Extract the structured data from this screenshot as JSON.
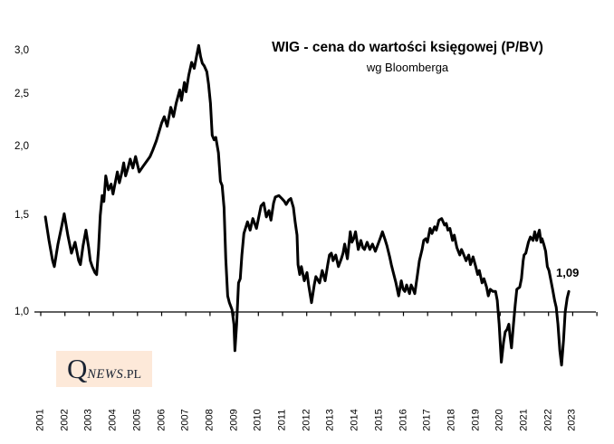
{
  "header": {
    "title": "WIG - cena do wartości księgowej (P/BV)",
    "subtitle": "wg Bloomberga"
  },
  "annotation": {
    "last_value_label": "1,09"
  },
  "logo": {
    "q": "Q",
    "news": "NEWS",
    "pl": ".PL",
    "background": "#fde9d9",
    "text_color": "#1b2433"
  },
  "colors": {
    "line": "#000000",
    "axis": "#000000",
    "background": "#ffffff"
  },
  "chart_data": {
    "type": "line",
    "title": "WIG - cena do wartości księgowej (P/BV)",
    "subtitle": "wg Bloomberga",
    "xlabel": "",
    "ylabel": "",
    "x_axis": {
      "tick_labels": [
        "2001",
        "2002",
        "2003",
        "2004",
        "2005",
        "2006",
        "2007",
        "2008",
        "2009",
        "2010",
        "2011",
        "2012",
        "2013",
        "2014",
        "2015",
        "2016",
        "2017",
        "2018",
        "2019",
        "2020",
        "2021",
        "2022",
        "2023"
      ],
      "range": [
        2001,
        2024
      ]
    },
    "y_axis": {
      "tick_labels": [
        "1,0",
        "1,5",
        "2,0",
        "2,5",
        "3,0"
      ],
      "tick_values": [
        1.0,
        1.5,
        2.0,
        2.5,
        3.0
      ],
      "scale": "log",
      "range": [
        0.75,
        3.2
      ],
      "baseline": 1.0,
      "grid": false
    },
    "legend": "none",
    "annotations": [
      {
        "text": "1,09",
        "x": 2022.84,
        "y": 1.09
      }
    ],
    "series": [
      {
        "name": "WIG P/BV",
        "color": "#000000",
        "points": [
          [
            2001.19,
            1.49
          ],
          [
            2001.34,
            1.35
          ],
          [
            2001.49,
            1.24
          ],
          [
            2001.56,
            1.21
          ],
          [
            2001.71,
            1.33
          ],
          [
            2001.86,
            1.43
          ],
          [
            2001.97,
            1.51
          ],
          [
            2002.12,
            1.38
          ],
          [
            2002.27,
            1.28
          ],
          [
            2002.42,
            1.34
          ],
          [
            2002.57,
            1.24
          ],
          [
            2002.64,
            1.22
          ],
          [
            2002.75,
            1.32
          ],
          [
            2002.87,
            1.41
          ],
          [
            2002.98,
            1.31
          ],
          [
            2003.05,
            1.24
          ],
          [
            2003.13,
            1.21
          ],
          [
            2003.24,
            1.18
          ],
          [
            2003.31,
            1.17
          ],
          [
            2003.39,
            1.3
          ],
          [
            2003.46,
            1.5
          ],
          [
            2003.54,
            1.63
          ],
          [
            2003.61,
            1.59
          ],
          [
            2003.69,
            1.77
          ],
          [
            2003.8,
            1.67
          ],
          [
            2003.91,
            1.71
          ],
          [
            2003.99,
            1.64
          ],
          [
            2004.1,
            1.74
          ],
          [
            2004.17,
            1.8
          ],
          [
            2004.25,
            1.72
          ],
          [
            2004.36,
            1.8
          ],
          [
            2004.43,
            1.87
          ],
          [
            2004.51,
            1.77
          ],
          [
            2004.62,
            1.84
          ],
          [
            2004.7,
            1.9
          ],
          [
            2004.81,
            1.83
          ],
          [
            2004.92,
            1.92
          ],
          [
            2005.07,
            1.8
          ],
          [
            2005.22,
            1.84
          ],
          [
            2005.37,
            1.88
          ],
          [
            2005.52,
            1.92
          ],
          [
            2005.63,
            1.97
          ],
          [
            2005.78,
            2.05
          ],
          [
            2005.89,
            2.13
          ],
          [
            2006.0,
            2.21
          ],
          [
            2006.11,
            2.27
          ],
          [
            2006.23,
            2.18
          ],
          [
            2006.38,
            2.36
          ],
          [
            2006.49,
            2.27
          ],
          [
            2006.6,
            2.4
          ],
          [
            2006.75,
            2.54
          ],
          [
            2006.82,
            2.43
          ],
          [
            2006.94,
            2.62
          ],
          [
            2007.01,
            2.52
          ],
          [
            2007.12,
            2.7
          ],
          [
            2007.24,
            2.85
          ],
          [
            2007.35,
            2.78
          ],
          [
            2007.46,
            2.95
          ],
          [
            2007.53,
            3.06
          ],
          [
            2007.61,
            2.92
          ],
          [
            2007.68,
            2.84
          ],
          [
            2007.76,
            2.81
          ],
          [
            2007.87,
            2.74
          ],
          [
            2007.94,
            2.6
          ],
          [
            2008.02,
            2.4
          ],
          [
            2008.09,
            2.1
          ],
          [
            2008.17,
            2.06
          ],
          [
            2008.24,
            2.08
          ],
          [
            2008.35,
            1.95
          ],
          [
            2008.43,
            1.73
          ],
          [
            2008.5,
            1.7
          ],
          [
            2008.58,
            1.55
          ],
          [
            2008.65,
            1.25
          ],
          [
            2008.73,
            1.07
          ],
          [
            2008.8,
            1.04
          ],
          [
            2008.91,
            1.01
          ],
          [
            2008.99,
            0.95
          ],
          [
            2009.03,
            0.85
          ],
          [
            2009.1,
            0.95
          ],
          [
            2009.18,
            1.13
          ],
          [
            2009.25,
            1.15
          ],
          [
            2009.32,
            1.27
          ],
          [
            2009.4,
            1.39
          ],
          [
            2009.55,
            1.46
          ],
          [
            2009.66,
            1.41
          ],
          [
            2009.77,
            1.48
          ],
          [
            2009.92,
            1.42
          ],
          [
            2010.03,
            1.5
          ],
          [
            2010.11,
            1.56
          ],
          [
            2010.22,
            1.58
          ],
          [
            2010.33,
            1.49
          ],
          [
            2010.44,
            1.53
          ],
          [
            2010.52,
            1.47
          ],
          [
            2010.63,
            1.58
          ],
          [
            2010.7,
            1.62
          ],
          [
            2010.85,
            1.63
          ],
          [
            2010.97,
            1.61
          ],
          [
            2011.08,
            1.59
          ],
          [
            2011.15,
            1.57
          ],
          [
            2011.26,
            1.6
          ],
          [
            2011.34,
            1.61
          ],
          [
            2011.45,
            1.55
          ],
          [
            2011.52,
            1.46
          ],
          [
            2011.6,
            1.38
          ],
          [
            2011.64,
            1.22
          ],
          [
            2011.71,
            1.17
          ],
          [
            2011.78,
            1.21
          ],
          [
            2011.9,
            1.14
          ],
          [
            2012.01,
            1.18
          ],
          [
            2012.08,
            1.12
          ],
          [
            2012.2,
            1.04
          ],
          [
            2012.31,
            1.12
          ],
          [
            2012.38,
            1.16
          ],
          [
            2012.53,
            1.13
          ],
          [
            2012.64,
            1.19
          ],
          [
            2012.76,
            1.14
          ],
          [
            2012.87,
            1.22
          ],
          [
            2012.94,
            1.27
          ],
          [
            2013.02,
            1.28
          ],
          [
            2013.09,
            1.24
          ],
          [
            2013.2,
            1.27
          ],
          [
            2013.31,
            1.21
          ],
          [
            2013.43,
            1.25
          ],
          [
            2013.5,
            1.28
          ],
          [
            2013.57,
            1.33
          ],
          [
            2013.68,
            1.25
          ],
          [
            2013.8,
            1.4
          ],
          [
            2013.87,
            1.34
          ],
          [
            2013.94,
            1.36
          ],
          [
            2014.02,
            1.4
          ],
          [
            2014.13,
            1.3
          ],
          [
            2014.24,
            1.35
          ],
          [
            2014.32,
            1.31
          ],
          [
            2014.39,
            1.3
          ],
          [
            2014.5,
            1.34
          ],
          [
            2014.61,
            1.3
          ],
          [
            2014.72,
            1.33
          ],
          [
            2014.84,
            1.29
          ],
          [
            2014.95,
            1.33
          ],
          [
            2015.06,
            1.37
          ],
          [
            2015.13,
            1.4
          ],
          [
            2015.25,
            1.35
          ],
          [
            2015.32,
            1.32
          ],
          [
            2015.43,
            1.26
          ],
          [
            2015.5,
            1.22
          ],
          [
            2015.58,
            1.18
          ],
          [
            2015.69,
            1.13
          ],
          [
            2015.8,
            1.07
          ],
          [
            2015.91,
            1.14
          ],
          [
            2015.99,
            1.1
          ],
          [
            2016.06,
            1.09
          ],
          [
            2016.13,
            1.12
          ],
          [
            2016.25,
            1.08
          ],
          [
            2016.32,
            1.12
          ],
          [
            2016.4,
            1.1
          ],
          [
            2016.47,
            1.08
          ],
          [
            2016.58,
            1.17
          ],
          [
            2016.66,
            1.24
          ],
          [
            2016.77,
            1.3
          ],
          [
            2016.84,
            1.35
          ],
          [
            2016.92,
            1.36
          ],
          [
            2016.99,
            1.34
          ],
          [
            2017.1,
            1.42
          ],
          [
            2017.18,
            1.39
          ],
          [
            2017.29,
            1.43
          ],
          [
            2017.36,
            1.41
          ],
          [
            2017.47,
            1.47
          ],
          [
            2017.58,
            1.48
          ],
          [
            2017.7,
            1.44
          ],
          [
            2017.77,
            1.45
          ],
          [
            2017.84,
            1.41
          ],
          [
            2017.92,
            1.42
          ],
          [
            2018.03,
            1.35
          ],
          [
            2018.1,
            1.38
          ],
          [
            2018.21,
            1.31
          ],
          [
            2018.33,
            1.27
          ],
          [
            2018.4,
            1.3
          ],
          [
            2018.47,
            1.28
          ],
          [
            2018.59,
            1.24
          ],
          [
            2018.7,
            1.27
          ],
          [
            2018.77,
            1.22
          ],
          [
            2018.88,
            1.26
          ],
          [
            2018.99,
            1.21
          ],
          [
            2019.07,
            1.17
          ],
          [
            2019.14,
            1.19
          ],
          [
            2019.25,
            1.13
          ],
          [
            2019.33,
            1.15
          ],
          [
            2019.44,
            1.11
          ],
          [
            2019.51,
            1.07
          ],
          [
            2019.59,
            1.1
          ],
          [
            2019.7,
            1.09
          ],
          [
            2019.81,
            1.09
          ],
          [
            2019.88,
            1.05
          ],
          [
            2019.96,
            0.95
          ],
          [
            2020.05,
            0.81
          ],
          [
            2020.14,
            0.88
          ],
          [
            2020.21,
            0.92
          ],
          [
            2020.29,
            0.93
          ],
          [
            2020.36,
            0.95
          ],
          [
            2020.4,
            0.91
          ],
          [
            2020.47,
            0.86
          ],
          [
            2020.55,
            0.95
          ],
          [
            2020.62,
            1.03
          ],
          [
            2020.69,
            1.1
          ],
          [
            2020.81,
            1.11
          ],
          [
            2020.88,
            1.15
          ],
          [
            2020.95,
            1.24
          ],
          [
            2020.99,
            1.27
          ],
          [
            2021.06,
            1.28
          ],
          [
            2021.17,
            1.34
          ],
          [
            2021.25,
            1.37
          ],
          [
            2021.36,
            1.35
          ],
          [
            2021.43,
            1.4
          ],
          [
            2021.51,
            1.35
          ],
          [
            2021.58,
            1.39
          ],
          [
            2021.62,
            1.41
          ],
          [
            2021.69,
            1.34
          ],
          [
            2021.73,
            1.36
          ],
          [
            2021.8,
            1.33
          ],
          [
            2021.88,
            1.29
          ],
          [
            2021.95,
            1.21
          ],
          [
            2022.02,
            1.19
          ],
          [
            2022.1,
            1.14
          ],
          [
            2022.17,
            1.1
          ],
          [
            2022.25,
            1.05
          ],
          [
            2022.32,
            1.02
          ],
          [
            2022.39,
            0.95
          ],
          [
            2022.47,
            0.85
          ],
          [
            2022.54,
            0.8
          ],
          [
            2022.62,
            0.89
          ],
          [
            2022.69,
            1.0
          ],
          [
            2022.77,
            1.06
          ],
          [
            2022.84,
            1.09
          ]
        ]
      }
    ]
  }
}
